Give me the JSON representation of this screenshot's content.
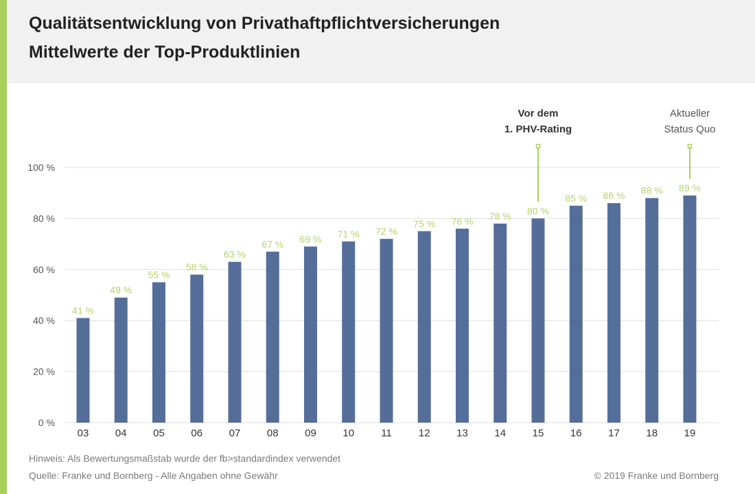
{
  "header": {
    "title": "Qualitätsentwicklung von Privathaftpflichtversicherungen",
    "subtitle": "Mittelwerte der Top-Produktlinien"
  },
  "footer": {
    "note": "Hinweis: Als Bewertungsmaßstab wurde der fb>standardindex verwendet",
    "source": "Quelle: Franke und Bornberg - Alle Angaben ohne Gewähr",
    "copyright": "© 2019 Franke und Bornberg"
  },
  "colors": {
    "bar": "#546e99",
    "label": "#b5d36a",
    "accent": "#a8cf5a",
    "grid": "#dedede",
    "axis_text": "#555555"
  },
  "chart_data": {
    "type": "bar",
    "categories": [
      "03",
      "04",
      "05",
      "06",
      "07",
      "08",
      "09",
      "10",
      "11",
      "12",
      "13",
      "14",
      "15",
      "16",
      "17",
      "18",
      "19"
    ],
    "values": [
      41,
      49,
      55,
      58,
      63,
      67,
      69,
      71,
      72,
      75,
      76,
      78,
      80,
      85,
      86,
      88,
      89
    ],
    "data_labels": [
      "41 %",
      "49 %",
      "55 %",
      "58 %",
      "63 %",
      "67 %",
      "69 %",
      "71 %",
      "72 %",
      "75 %",
      "76 %",
      "78 %",
      "80 %",
      "85 %",
      "86 %",
      "88 %",
      "89 %"
    ],
    "yticks": [
      0,
      20,
      40,
      60,
      80,
      100
    ],
    "ytick_labels": [
      "0 %",
      "20 %",
      "40 %",
      "60 %",
      "80 %",
      "100 %"
    ],
    "ylim": [
      0,
      100
    ],
    "grid": true,
    "annotations": [
      {
        "category": "15",
        "lines": [
          "Vor dem",
          "1. PHV-Rating"
        ],
        "bold": true
      },
      {
        "category": "19",
        "lines": [
          "Aktueller",
          "Status Quo"
        ],
        "bold": false
      }
    ]
  }
}
